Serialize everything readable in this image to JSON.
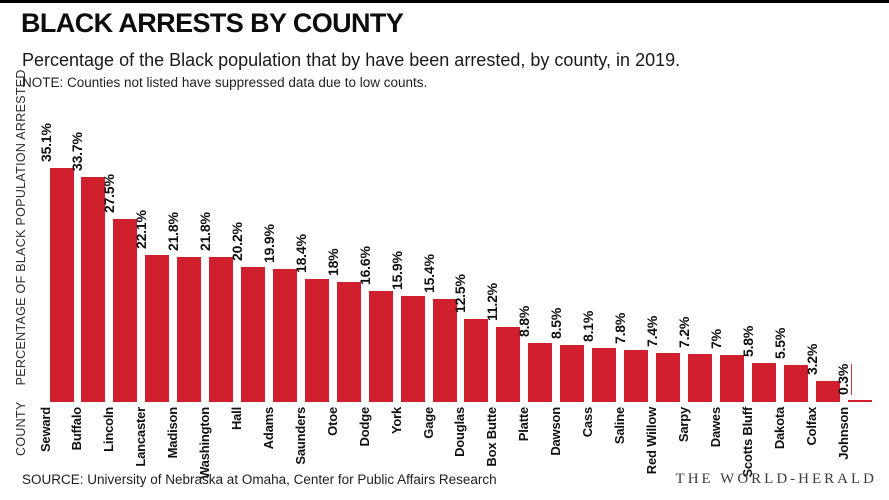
{
  "colors": {
    "bar": "#d0202e",
    "top_rule": "#000000"
  },
  "header": {
    "title": "BLACK ARRESTS BY COUNTY",
    "subtitle": "Percentage of the Black population that by have been arrested, by county, in 2019.",
    "note": "NOTE: Counties not listed have suppressed data due to low counts."
  },
  "footer": {
    "source": "SOURCE: University of Nebraska at Omaha, Center for Public Affairs Research",
    "credit": "THE WORLD-HERALD"
  },
  "chart_data": {
    "type": "bar",
    "title": "BLACK ARRESTS BY COUNTY",
    "subtitle": "Percentage of the Black population that by have been arrested, by county, in 2019.",
    "note": "NOTE: Counties not listed have suppressed data due to low counts.",
    "xlabel": "COUNTY",
    "ylabel": "PERCENTAGE OF BLACK POPULATION ARRESTED",
    "ylim": [
      0,
      36
    ],
    "grid": false,
    "bar_color": "#d0202e",
    "categories": [
      "Seward",
      "Buffalo",
      "Lincoln",
      "Lancaster",
      "Madison",
      "Washington",
      "Hall",
      "Adams",
      "Saunders",
      "Otoe",
      "Dodge",
      "York",
      "Gage",
      "Douglas",
      "Box Butte",
      "Platte",
      "Dawson",
      "Cass",
      "Saline",
      "Red Willow",
      "Sarpy",
      "Dawes",
      "Scotts Bluff",
      "Dakota",
      "Colfax",
      "Johnson"
    ],
    "values": [
      35.1,
      33.7,
      27.5,
      22.1,
      21.8,
      21.8,
      20.2,
      19.9,
      18.4,
      18,
      16.6,
      15.9,
      15.4,
      12.5,
      11.2,
      8.8,
      8.5,
      8.1,
      7.8,
      7.4,
      7.2,
      7,
      5.8,
      5.5,
      3.2,
      0.3
    ],
    "value_labels": [
      "35.1%",
      "33.7%",
      "27.5%",
      "22.1%",
      "21.8%",
      "21.8%",
      "20.2%",
      "19.9%",
      "18.4%",
      "18%",
      "16.6%",
      "15.9%",
      "15.4%",
      "12.5%",
      "11.2%",
      "8.8%",
      "8.5%",
      "8.1%",
      "7.8%",
      "7.4%",
      "7.2%",
      "7%",
      "5.8%",
      "5.5%",
      "3.2%",
      "0.3%"
    ],
    "source": "SOURCE: University of Nebraska at Omaha, Center for Public Affairs Research",
    "credit": "THE WORLD-HERALD"
  }
}
